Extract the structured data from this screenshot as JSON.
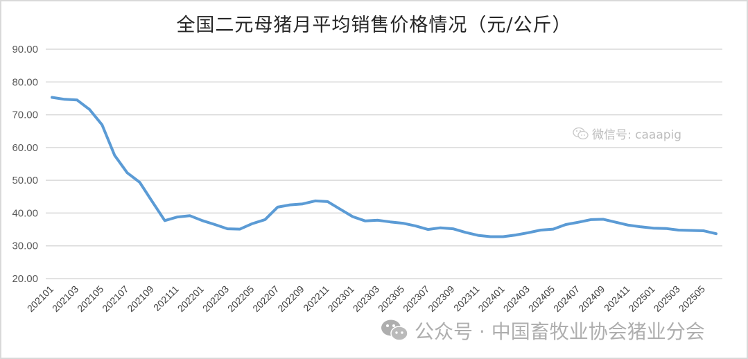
{
  "chart_data": {
    "type": "line",
    "title": "全国二元母猪月平均销售价格情况（元/公斤）",
    "xlabel": "",
    "ylabel": "",
    "ylim": [
      20,
      90
    ],
    "yticks": [
      "20.00",
      "30.00",
      "40.00",
      "50.00",
      "60.00",
      "70.00",
      "80.00",
      "90.00"
    ],
    "grid": true,
    "legend": "none",
    "line_color": "#5b9bd5",
    "x": [
      "202101",
      "202102",
      "202103",
      "202104",
      "202105",
      "202106",
      "202107",
      "202108",
      "202109",
      "202110",
      "202111",
      "202112",
      "202201",
      "202202",
      "202203",
      "202204",
      "202205",
      "202206",
      "202207",
      "202208",
      "202209",
      "202210",
      "202211",
      "202212",
      "202301",
      "202302",
      "202303",
      "202304",
      "202305",
      "202306",
      "202307",
      "202308",
      "202309",
      "202310",
      "202311",
      "202312",
      "202401",
      "202402",
      "202403",
      "202404",
      "202405",
      "202406",
      "202407",
      "202408",
      "202409",
      "202410",
      "202411",
      "202412",
      "202501",
      "202502",
      "202503",
      "202504",
      "202505",
      "202506"
    ],
    "xtick_labels": [
      "202101",
      "202103",
      "202105",
      "202107",
      "202109",
      "202111",
      "202201",
      "202203",
      "202205",
      "202207",
      "202209",
      "202211",
      "202301",
      "202303",
      "202305",
      "202307",
      "202309",
      "202311",
      "202401",
      "202403",
      "202405",
      "202407",
      "202409",
      "202411",
      "202501",
      "202503",
      "202505"
    ],
    "series": [
      {
        "name": "二元母猪月平均销售价格",
        "values": [
          75.3,
          74.7,
          74.5,
          71.6,
          66.9,
          57.6,
          52.3,
          49.4,
          43.5,
          37.7,
          38.8,
          39.2,
          37.7,
          36.5,
          35.2,
          35.1,
          36.8,
          38.0,
          41.8,
          42.5,
          42.8,
          43.7,
          43.5,
          41.2,
          38.9,
          37.6,
          37.8,
          37.3,
          36.9,
          36.1,
          35.0,
          35.5,
          35.2,
          34.1,
          33.2,
          32.8,
          32.8,
          33.3,
          34.0,
          34.8,
          35.1,
          36.5,
          37.2,
          38.0,
          38.1,
          37.2,
          36.3,
          35.8,
          35.4,
          35.3,
          34.8,
          34.7,
          34.6,
          33.7
        ]
      }
    ]
  },
  "watermarks": {
    "wechat_id": "微信号: caaapig",
    "official_account": "公众号 · 中国畜牧业协会猪业分会",
    "icon": "wechat-icon"
  }
}
